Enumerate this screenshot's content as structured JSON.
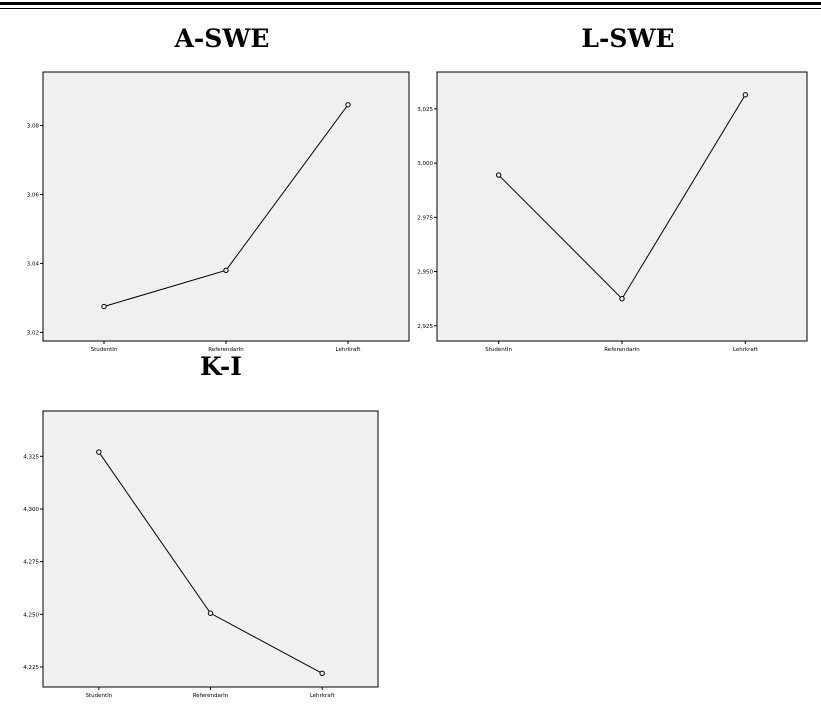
{
  "chart_data": [
    {
      "type": "line",
      "title": "A-SWE",
      "categories": [
        "StudentIn",
        "ReferendarIn",
        "Lehrkraft"
      ],
      "series": [
        {
          "values": [
            3.0275,
            3.038,
            3.086
          ]
        }
      ],
      "yticks": [
        "3,02",
        "3,04",
        "3,06",
        "3,08"
      ],
      "ytick_values": [
        3.02,
        3.04,
        3.06,
        3.08
      ],
      "ylim": [
        3.0175,
        3.0955
      ],
      "xlabel": "",
      "ylabel": "",
      "grid": false,
      "background": "#f0f0f0"
    },
    {
      "type": "line",
      "title": "L-SWE",
      "categories": [
        "StudentIn",
        "ReferendarIn",
        "Lehrkraft"
      ],
      "series": [
        {
          "values": [
            2.9945,
            2.9375,
            3.0315
          ]
        }
      ],
      "yticks": [
        "2,925",
        "2,950",
        "2,975",
        "3,000",
        "3,025"
      ],
      "ytick_values": [
        2.925,
        2.95,
        2.975,
        3.0,
        3.025
      ],
      "ylim": [
        2.918,
        3.042
      ],
      "xlabel": "",
      "ylabel": "",
      "grid": false,
      "background": "#f0f0f0"
    },
    {
      "type": "line",
      "title": "K-I",
      "categories": [
        "StudentIn",
        "ReferendarIn",
        "Lehrkraft"
      ],
      "series": [
        {
          "values": [
            4.327,
            4.2505,
            4.222
          ]
        }
      ],
      "yticks": [
        "4,225",
        "4,250",
        "4,275",
        "4,300",
        "4,325"
      ],
      "ytick_values": [
        4.225,
        4.25,
        4.275,
        4.3,
        4.325
      ],
      "ylim": [
        4.2155,
        4.3465
      ],
      "xlabel": "",
      "ylabel": "",
      "grid": false,
      "background": "#f0f0f0"
    }
  ]
}
